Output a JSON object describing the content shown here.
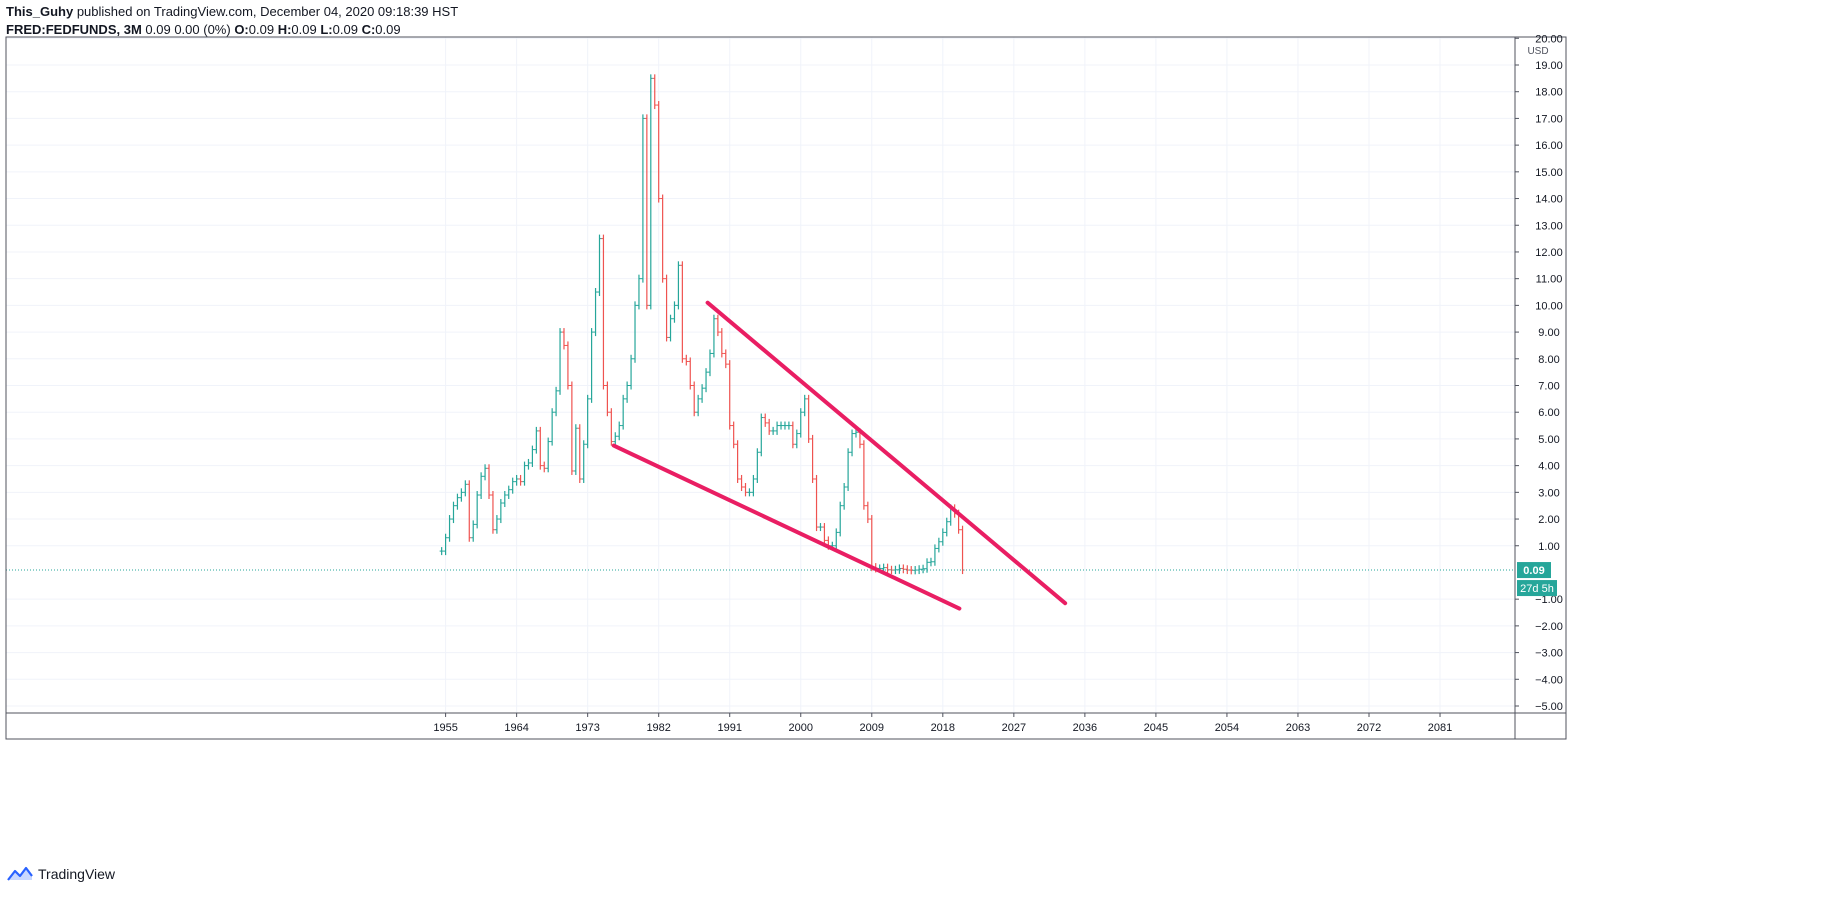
{
  "header": {
    "username": "This_Guhy",
    "published_text": "published on TradingView.com, December 04, 2020 09:18:39 HST",
    "symbol": "FRED:FEDFUNDS, 3M",
    "last_change": "0.09 0.00 (0%)",
    "o_label": "O:",
    "o_value": "0.09",
    "h_label": "H:",
    "h_value": "0.09",
    "l_label": "L:",
    "l_value": "0.09",
    "c_label": "C:",
    "c_value": "0.09"
  },
  "footer": {
    "brand": "TradingView",
    "logo_icon": "tradingview-logo-icon"
  },
  "colors": {
    "up": "#26a69a",
    "down": "#ef5350",
    "trendline": "#e91e63",
    "last_price": "#26a69a",
    "grid": "#f0f3fa",
    "axis": "#131722"
  },
  "price_axis": {
    "currency": "USD",
    "last_price_label": "0.09",
    "countdown_label": "27d 5h"
  },
  "chart_data": {
    "type": "ohlc",
    "title": "FRED:FEDFUNDS, 3M",
    "y_tick_labels": [
      "20.00",
      "19.00",
      "18.00",
      "17.00",
      "16.00",
      "15.00",
      "14.00",
      "13.00",
      "12.00",
      "11.00",
      "10.00",
      "9.00",
      "8.00",
      "7.00",
      "6.00",
      "5.00",
      "4.00",
      "3.00",
      "2.00",
      "1.00",
      "−1.00",
      "−2.00",
      "−3.00",
      "−4.00",
      "−5.00"
    ],
    "y_ticks": [
      20,
      19,
      18,
      17,
      16,
      15,
      14,
      13,
      12,
      11,
      10,
      9,
      8,
      7,
      6,
      5,
      4,
      3,
      2,
      1,
      -1,
      -2,
      -3,
      -4,
      -5
    ],
    "ylim": [
      -5,
      20
    ],
    "x_tick_labels": [
      "1955",
      "1964",
      "1973",
      "1982",
      "1991",
      "2000",
      "2009",
      "2018",
      "2027",
      "2036",
      "2045",
      "2054",
      "2063",
      "2072",
      "2081"
    ],
    "x_ticks": [
      1955,
      1964,
      1973,
      1982,
      1991,
      2000,
      2009,
      2018,
      2027,
      2036,
      2045,
      2054,
      2063,
      2072,
      2081
    ],
    "xlim": [
      1899.3,
      2090.5
    ],
    "last_price": 0.09,
    "series": [
      {
        "points": [
          [
            1954.5,
            0.8
          ],
          [
            1955.0,
            1.3
          ],
          [
            1955.5,
            2.0
          ],
          [
            1956.0,
            2.5
          ],
          [
            1956.5,
            2.8
          ],
          [
            1957.0,
            3.0
          ],
          [
            1957.5,
            3.3
          ],
          [
            1958.0,
            1.3
          ],
          [
            1958.5,
            1.8
          ],
          [
            1959.0,
            2.9
          ],
          [
            1959.5,
            3.6
          ],
          [
            1960.0,
            3.9
          ],
          [
            1960.5,
            2.9
          ],
          [
            1961.0,
            1.6
          ],
          [
            1961.5,
            2.0
          ],
          [
            1962.0,
            2.6
          ],
          [
            1962.5,
            2.9
          ],
          [
            1963.0,
            3.1
          ],
          [
            1963.5,
            3.4
          ],
          [
            1964.0,
            3.5
          ],
          [
            1964.5,
            3.4
          ],
          [
            1965.0,
            4.0
          ],
          [
            1965.5,
            4.1
          ],
          [
            1966.0,
            4.6
          ],
          [
            1966.5,
            5.3
          ],
          [
            1967.0,
            4.0
          ],
          [
            1967.5,
            3.9
          ],
          [
            1968.0,
            4.9
          ],
          [
            1968.5,
            6.0
          ],
          [
            1969.0,
            6.8
          ],
          [
            1969.5,
            9.0
          ],
          [
            1970.0,
            8.5
          ],
          [
            1970.5,
            7.0
          ],
          [
            1971.0,
            3.8
          ],
          [
            1971.5,
            5.4
          ],
          [
            1972.0,
            3.5
          ],
          [
            1972.5,
            4.8
          ],
          [
            1973.0,
            6.5
          ],
          [
            1973.5,
            9.0
          ],
          [
            1974.0,
            10.5
          ],
          [
            1974.5,
            12.5
          ],
          [
            1975.0,
            7.0
          ],
          [
            1975.5,
            6.0
          ],
          [
            1976.0,
            4.9
          ],
          [
            1976.5,
            5.1
          ],
          [
            1977.0,
            5.5
          ],
          [
            1977.5,
            6.5
          ],
          [
            1978.0,
            7.0
          ],
          [
            1978.5,
            8.0
          ],
          [
            1979.0,
            10.0
          ],
          [
            1979.5,
            11.0
          ],
          [
            1980.0,
            17.0
          ],
          [
            1980.5,
            10.0
          ],
          [
            1981.0,
            18.5
          ],
          [
            1981.5,
            17.5
          ],
          [
            1982.0,
            14.0
          ],
          [
            1982.5,
            11.0
          ],
          [
            1983.0,
            8.8
          ],
          [
            1983.5,
            9.5
          ],
          [
            1984.0,
            10.0
          ],
          [
            1984.5,
            11.5
          ],
          [
            1985.0,
            8.0
          ],
          [
            1985.5,
            7.9
          ],
          [
            1986.0,
            7.0
          ],
          [
            1986.5,
            6.0
          ],
          [
            1987.0,
            6.5
          ],
          [
            1987.5,
            6.9
          ],
          [
            1988.0,
            7.5
          ],
          [
            1988.5,
            8.2
          ],
          [
            1989.0,
            9.5
          ],
          [
            1989.5,
            9.0
          ],
          [
            1990.0,
            8.2
          ],
          [
            1990.5,
            7.8
          ],
          [
            1991.0,
            5.5
          ],
          [
            1991.5,
            4.8
          ],
          [
            1992.0,
            3.5
          ],
          [
            1992.5,
            3.2
          ],
          [
            1993.0,
            3.0
          ],
          [
            1993.5,
            3.0
          ],
          [
            1994.0,
            3.5
          ],
          [
            1994.5,
            4.5
          ],
          [
            1995.0,
            5.8
          ],
          [
            1995.5,
            5.6
          ],
          [
            1996.0,
            5.3
          ],
          [
            1996.5,
            5.3
          ],
          [
            1997.0,
            5.5
          ],
          [
            1997.5,
            5.5
          ],
          [
            1998.0,
            5.5
          ],
          [
            1998.5,
            5.5
          ],
          [
            1999.0,
            4.8
          ],
          [
            1999.5,
            5.2
          ],
          [
            2000.0,
            6.0
          ],
          [
            2000.5,
            6.5
          ],
          [
            2001.0,
            5.0
          ],
          [
            2001.5,
            3.5
          ],
          [
            2002.0,
            1.7
          ],
          [
            2002.5,
            1.7
          ],
          [
            2003.0,
            1.2
          ],
          [
            2003.5,
            1.0
          ],
          [
            2004.0,
            1.0
          ],
          [
            2004.5,
            1.5
          ],
          [
            2005.0,
            2.5
          ],
          [
            2005.5,
            3.2
          ],
          [
            2006.0,
            4.5
          ],
          [
            2006.5,
            5.2
          ],
          [
            2007.0,
            5.25
          ],
          [
            2007.5,
            4.8
          ],
          [
            2008.0,
            2.5
          ],
          [
            2008.5,
            2.0
          ],
          [
            2009.0,
            0.2
          ],
          [
            2009.5,
            0.15
          ],
          [
            2010.0,
            0.15
          ],
          [
            2010.5,
            0.18
          ],
          [
            2011.0,
            0.1
          ],
          [
            2011.5,
            0.09
          ],
          [
            2012.0,
            0.1
          ],
          [
            2012.5,
            0.15
          ],
          [
            2013.0,
            0.12
          ],
          [
            2013.5,
            0.09
          ],
          [
            2014.0,
            0.08
          ],
          [
            2014.5,
            0.09
          ],
          [
            2015.0,
            0.12
          ],
          [
            2015.5,
            0.14
          ],
          [
            2016.0,
            0.38
          ],
          [
            2016.5,
            0.4
          ],
          [
            2017.0,
            0.9
          ],
          [
            2017.5,
            1.15
          ],
          [
            2018.0,
            1.5
          ],
          [
            2018.5,
            1.9
          ],
          [
            2019.0,
            2.4
          ],
          [
            2019.5,
            2.2
          ],
          [
            2020.0,
            1.6
          ],
          [
            2020.5,
            0.09
          ]
        ]
      }
    ],
    "trendlines": [
      {
        "points": [
          [
            1988.2,
            10.1
          ],
          [
            2033.5,
            -1.15
          ]
        ]
      },
      {
        "points": [
          [
            1976.3,
            4.75
          ],
          [
            2020.1,
            -1.35
          ]
        ]
      }
    ]
  }
}
